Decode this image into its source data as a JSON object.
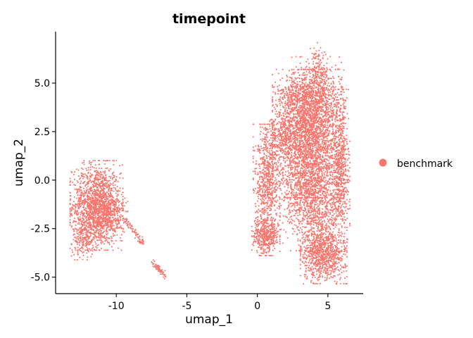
{
  "chart_data": {
    "type": "scatter",
    "title": "timepoint",
    "xlabel": "umap_1",
    "ylabel": "umap_2",
    "xlim": [
      -14.3,
      7.5
    ],
    "ylim": [
      -5.85,
      7.65
    ],
    "xticks": [
      -10,
      -5,
      0,
      5
    ],
    "xtick_labels": [
      "-10",
      "-5",
      "0",
      "5"
    ],
    "yticks": [
      -5.0,
      -2.5,
      0.0,
      2.5,
      5.0
    ],
    "ytick_labels": [
      "-5.0",
      "-2.5",
      "0.0",
      "2.5",
      "5.0"
    ],
    "grid": false,
    "legend": {
      "position": "right",
      "entries": [
        {
          "label": "benchmark",
          "color": "#F8766D"
        }
      ]
    },
    "series": [
      {
        "name": "benchmark",
        "color": "#F8766D",
        "clusters": [
          {
            "cx": -11.4,
            "cy": -1.3,
            "sx": 0.85,
            "sy": 1.05,
            "n": 1500
          },
          {
            "cx": -12.3,
            "cy": -2.9,
            "sx": 0.4,
            "sy": 0.55,
            "n": 200
          },
          {
            "cx": -10.4,
            "cy": -1.8,
            "sx": 0.55,
            "sy": 0.6,
            "n": 300
          },
          {
            "cx": 3.6,
            "cy": 2.4,
            "sx": 1.15,
            "sy": 1.5,
            "n": 2800
          },
          {
            "cx": 4.2,
            "cy": 4.6,
            "sx": 0.8,
            "sy": 0.8,
            "n": 500
          },
          {
            "cx": 2.4,
            "cy": 4.3,
            "sx": 0.6,
            "sy": 0.35,
            "n": 150
          },
          {
            "cx": 3.9,
            "cy": -1.0,
            "sx": 1.05,
            "sy": 1.2,
            "n": 1200
          },
          {
            "cx": 4.7,
            "cy": -3.8,
            "sx": 0.75,
            "sy": 0.7,
            "n": 900
          },
          {
            "cx": 0.6,
            "cy": -2.9,
            "sx": 0.45,
            "sy": 0.45,
            "n": 400
          },
          {
            "cx": 0.7,
            "cy": -0.2,
            "sx": 0.45,
            "sy": 1.4,
            "n": 700
          },
          {
            "cx": 1.6,
            "cy": 2.3,
            "sx": 0.5,
            "sy": 0.5,
            "n": 200
          },
          {
            "cx": 5.9,
            "cy": 0.5,
            "sx": 0.3,
            "sy": 1.9,
            "n": 600
          },
          {
            "cx": 4.3,
            "cy": 6.2,
            "sx": 0.25,
            "sy": 0.4,
            "n": 60
          }
        ],
        "trails": [
          {
            "x0": -9.5,
            "y0": -1.9,
            "x1": -8.1,
            "y1": -3.3,
            "n": 80
          },
          {
            "x0": -7.4,
            "y0": -4.3,
            "x1": -6.5,
            "y1": -4.95,
            "n": 60
          }
        ]
      }
    ]
  }
}
